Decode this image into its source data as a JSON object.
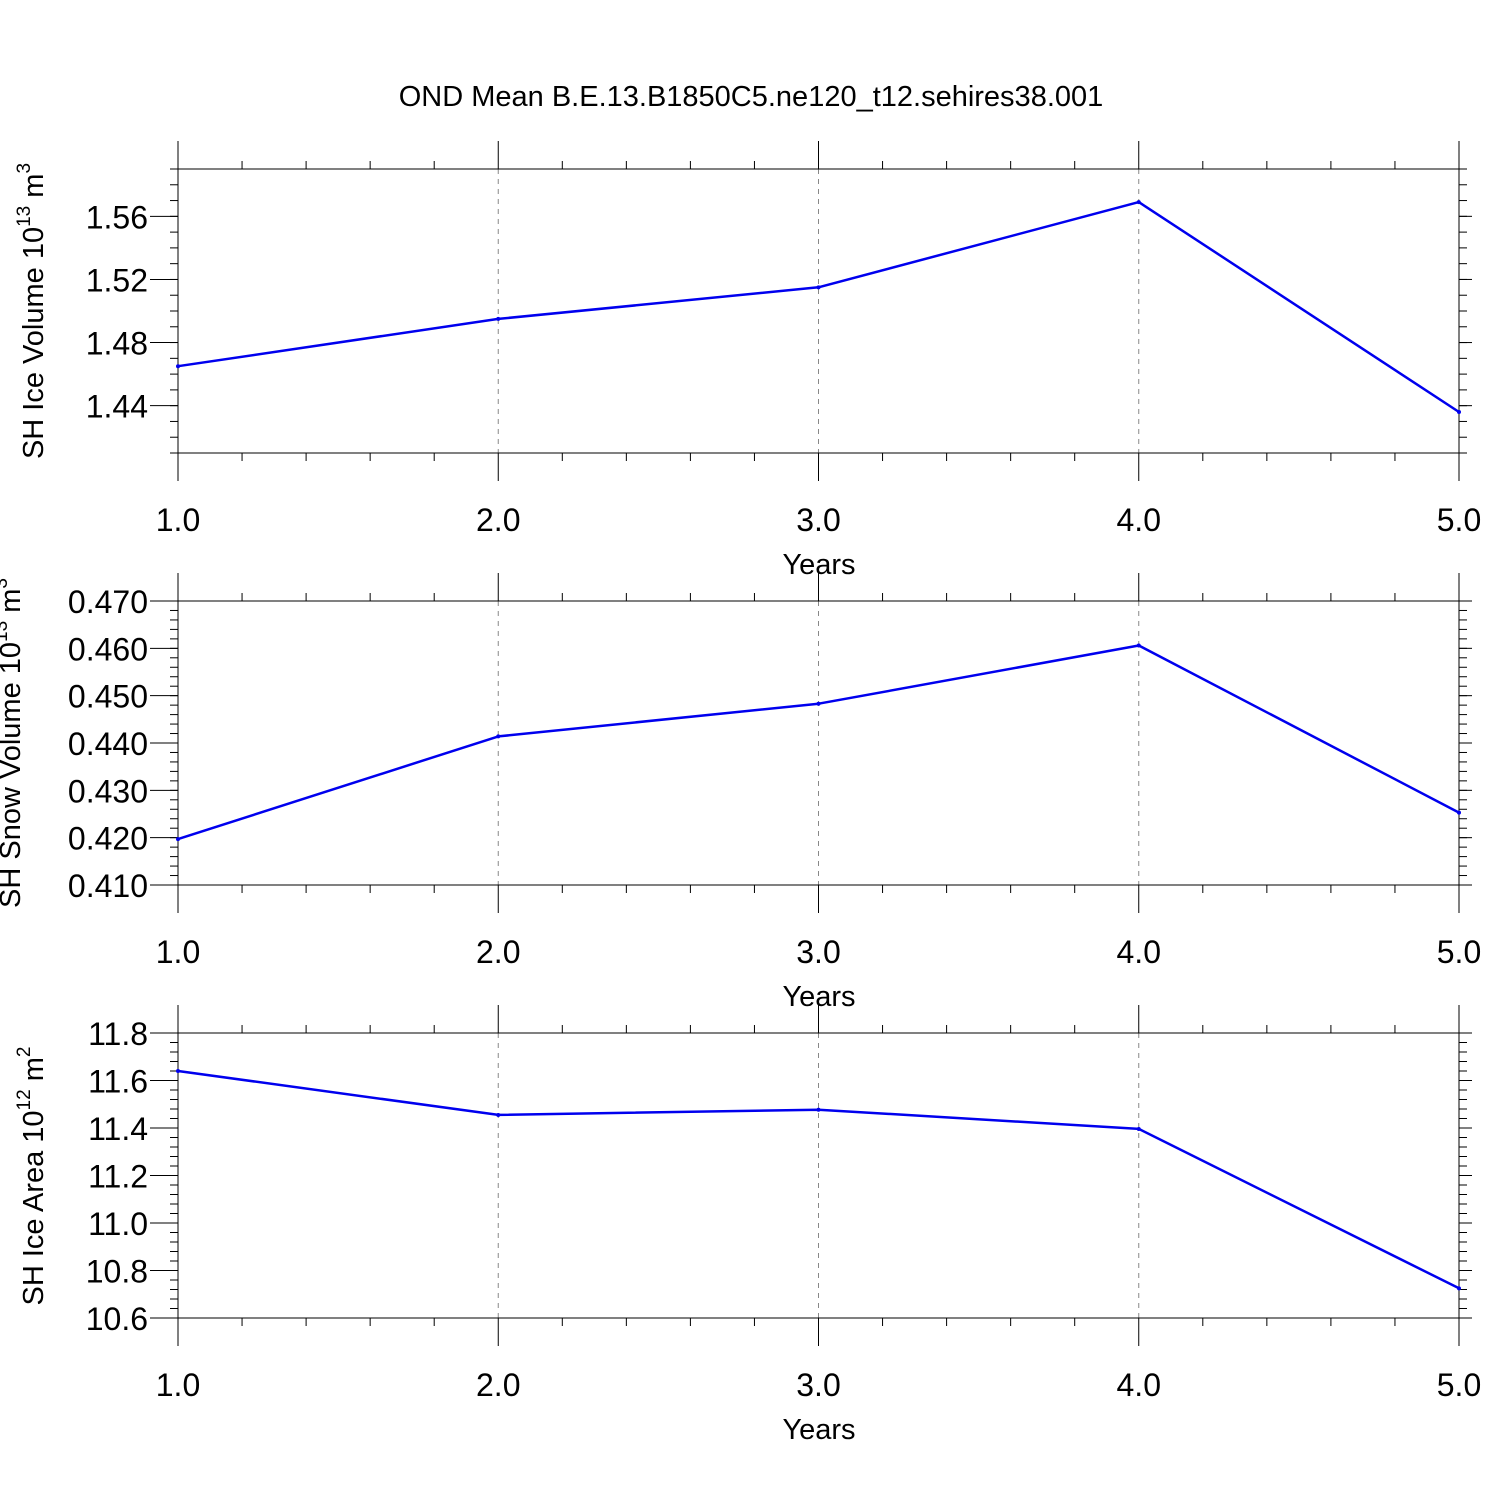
{
  "figure_title": "OND Mean B.E.13.B1850C5.ne120_t12.sehires38.001",
  "line_color": "#0000ee",
  "chart_data": [
    {
      "type": "line",
      "id": "ice-volume",
      "title": "",
      "xlabel": "Years",
      "ylabel": {
        "main": "SH Ice Volume 10",
        "sup1": "13",
        "mid": " m",
        "sup2": "3"
      },
      "x": [
        1.0,
        2.0,
        3.0,
        4.0,
        5.0
      ],
      "values": [
        1.465,
        1.495,
        1.515,
        1.569,
        1.436
      ],
      "xlim": [
        1.0,
        5.0
      ],
      "ylim": [
        1.41,
        1.59
      ],
      "yticks": [
        1.44,
        1.48,
        1.52,
        1.56
      ],
      "ytick_labels": [
        "1.44",
        "1.48",
        "1.52",
        "1.56"
      ],
      "ytick_decimals": 2,
      "yminor_step": 0.01,
      "xticks": [
        1.0,
        2.0,
        3.0,
        4.0,
        5.0
      ],
      "xtick_labels": [
        "1.0",
        "2.0",
        "3.0",
        "4.0",
        "5.0"
      ],
      "grid": "x-dashed"
    },
    {
      "type": "line",
      "id": "snow-volume",
      "title": "",
      "xlabel": "Years",
      "ylabel": {
        "main": "SH Snow Volume 10",
        "sup1": "13",
        "mid": " m",
        "sup2": "3"
      },
      "x": [
        1.0,
        2.0,
        3.0,
        4.0,
        5.0
      ],
      "values": [
        0.4197,
        0.4414,
        0.4483,
        0.4606,
        0.4253
      ],
      "xlim": [
        1.0,
        5.0
      ],
      "ylim": [
        0.41,
        0.47
      ],
      "yticks": [
        0.41,
        0.42,
        0.43,
        0.44,
        0.45,
        0.46,
        0.47
      ],
      "ytick_labels": [
        "0.410",
        "0.420",
        "0.430",
        "0.440",
        "0.450",
        "0.460",
        "0.470"
      ],
      "ytick_decimals": 3,
      "yminor_step": 0.002,
      "xticks": [
        1.0,
        2.0,
        3.0,
        4.0,
        5.0
      ],
      "xtick_labels": [
        "1.0",
        "2.0",
        "3.0",
        "4.0",
        "5.0"
      ],
      "grid": "x-dashed"
    },
    {
      "type": "line",
      "id": "ice-area",
      "title": "",
      "xlabel": "Years",
      "ylabel": {
        "main": "SH Ice Area 10",
        "sup1": "12",
        "mid": " m",
        "sup2": "2"
      },
      "x": [
        1.0,
        2.0,
        3.0,
        4.0,
        5.0
      ],
      "values": [
        11.64,
        11.455,
        11.477,
        11.396,
        10.725
      ],
      "xlim": [
        1.0,
        5.0
      ],
      "ylim": [
        10.6,
        11.8
      ],
      "yticks": [
        10.6,
        10.8,
        11.0,
        11.2,
        11.4,
        11.6,
        11.8
      ],
      "ytick_labels": [
        "10.6",
        "10.8",
        "11.0",
        "11.2",
        "11.4",
        "11.6",
        "11.8"
      ],
      "ytick_decimals": 1,
      "yminor_step": 0.04,
      "xticks": [
        1.0,
        2.0,
        3.0,
        4.0,
        5.0
      ],
      "xtick_labels": [
        "1.0",
        "2.0",
        "3.0",
        "4.0",
        "5.0"
      ],
      "grid": "x-dashed"
    }
  ]
}
